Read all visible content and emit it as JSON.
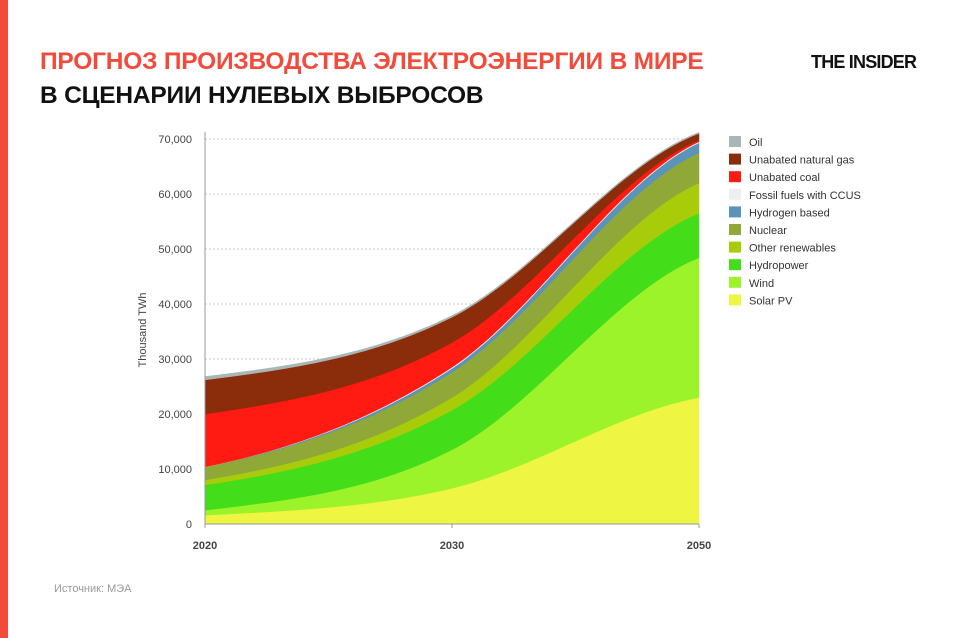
{
  "header": {
    "title_line1": "ПРОГНОЗ ПРОИЗВОДСТВА ЭЛЕКТРОЭНЕРГИИ В МИРЕ",
    "title_line2": "В СЦЕНАРИИ НУЛЕВЫХ ВЫБРОСОВ",
    "logo": "THE INSIDER",
    "accent_color": "#f24b3c"
  },
  "source": "Источник: МЭА",
  "chart_data": {
    "type": "area",
    "stacked": true,
    "ylabel": "Thousand TWh",
    "xlabel": "",
    "categories": [
      "2020",
      "2030",
      "2050"
    ],
    "ylim": [
      0,
      70000
    ],
    "yticks": [
      "0",
      "10,000",
      "20,000",
      "30,000",
      "40,000",
      "50,000",
      "60,000",
      "70,000"
    ],
    "grid": "horizontal dashed",
    "legend_placement": "right",
    "series": [
      {
        "name": "Solar PV",
        "color": "#eef542",
        "values": [
          1600,
          6500,
          23000
        ]
      },
      {
        "name": "Wind",
        "color": "#9cf32a",
        "values": [
          900,
          7000,
          25400
        ]
      },
      {
        "name": "Hydropower",
        "color": "#44dd1a",
        "values": [
          4600,
          7200,
          8100
        ]
      },
      {
        "name": "Other renewables",
        "color": "#a8cc0a",
        "values": [
          900,
          2300,
          5500
        ]
      },
      {
        "name": "Nuclear",
        "color": "#8fa838",
        "values": [
          2400,
          4600,
          5500
        ]
      },
      {
        "name": "Hydrogen based",
        "color": "#5a94b8",
        "values": [
          0,
          700,
          1800
        ]
      },
      {
        "name": "Fossil fuels with CCUS",
        "color": "#eef0f0",
        "values": [
          0,
          200,
          200
        ]
      },
      {
        "name": "Unabated coal",
        "color": "#ff1a12",
        "values": [
          9600,
          4500,
          300
        ]
      },
      {
        "name": "Unabated natural gas",
        "color": "#8b2c0a",
        "values": [
          6200,
          4600,
          1200
        ]
      },
      {
        "name": "Oil",
        "color": "#a9b6b5",
        "values": [
          600,
          300,
          200
        ]
      }
    ]
  }
}
